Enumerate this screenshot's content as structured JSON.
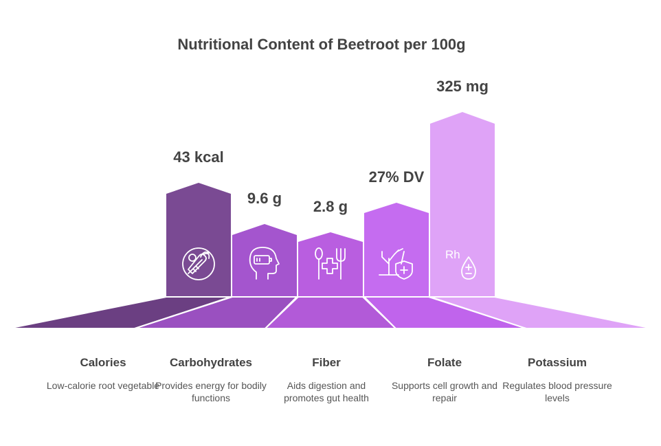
{
  "chart_data": {
    "type": "bar",
    "title": "Nutritional Content of Beetroot per 100g",
    "categories": [
      "Calories",
      "Carbohydrates",
      "Fiber",
      "Folate",
      "Potassium"
    ],
    "value_labels": [
      "43 kcal",
      "9.6 g",
      "2.8 g",
      "27% DV",
      "325 mg"
    ],
    "descriptions": [
      "Low-calorie root vegetable",
      "Provides energy for bodily functions",
      "Aids digestion and promotes gut health",
      "Supports cell growth and repair",
      "Regulates blood pressure levels"
    ],
    "icons": [
      "vegetables-icon",
      "brain-battery-icon",
      "spoon-fork-medical-icon",
      "plant-shield-icon",
      "rh-blood-drop-icon"
    ],
    "icon_text": [
      "",
      "",
      "",
      "",
      "Rh"
    ],
    "colors": [
      "#7a4a93",
      "#a455ce",
      "#b95ee0",
      "#c56cf0",
      "#dfa3f7"
    ]
  }
}
